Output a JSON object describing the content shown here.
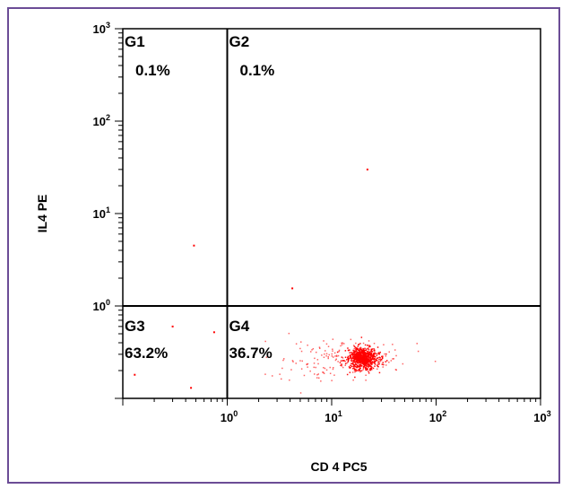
{
  "chart_data": {
    "type": "scatter",
    "xlabel": "CD 4 PC5",
    "ylabel": "IL4 PE",
    "xscale": "log",
    "yscale": "log",
    "xlim": [
      0.1,
      1000
    ],
    "ylim": [
      0.1,
      1000
    ],
    "x_ticks": [
      {
        "base": "10",
        "exp": "0",
        "value": 1
      },
      {
        "base": "10",
        "exp": "1",
        "value": 10
      },
      {
        "base": "10",
        "exp": "2",
        "value": 100
      },
      {
        "base": "10",
        "exp": "3",
        "value": 1000
      }
    ],
    "y_ticks": [
      {
        "base": "10",
        "exp": "0",
        "value": 1
      },
      {
        "base": "10",
        "exp": "1",
        "value": 10
      },
      {
        "base": "10",
        "exp": "2",
        "value": 100
      },
      {
        "base": "10",
        "exp": "3",
        "value": 1000
      }
    ],
    "gates": {
      "x": 1,
      "y": 1
    },
    "quadrants": [
      {
        "label": "G1",
        "percent": "0.1%"
      },
      {
        "label": "G2",
        "percent": "0.1%"
      },
      {
        "label": "G3",
        "percent": "63.2%"
      },
      {
        "label": "G4",
        "percent": "36.7%"
      }
    ],
    "point_color": "#ff0000",
    "gate_color": "#000000",
    "cluster": {
      "x_center": 20,
      "y_center": 0.27,
      "count": 900
    },
    "outliers": [
      {
        "x": 22,
        "y": 30
      },
      {
        "x": 0.48,
        "y": 4.5
      },
      {
        "x": 4.2,
        "y": 1.55
      },
      {
        "x": 0.13,
        "y": 0.18
      },
      {
        "x": 0.45,
        "y": 0.13
      },
      {
        "x": 0.3,
        "y": 0.6
      },
      {
        "x": 0.75,
        "y": 0.52
      }
    ]
  }
}
